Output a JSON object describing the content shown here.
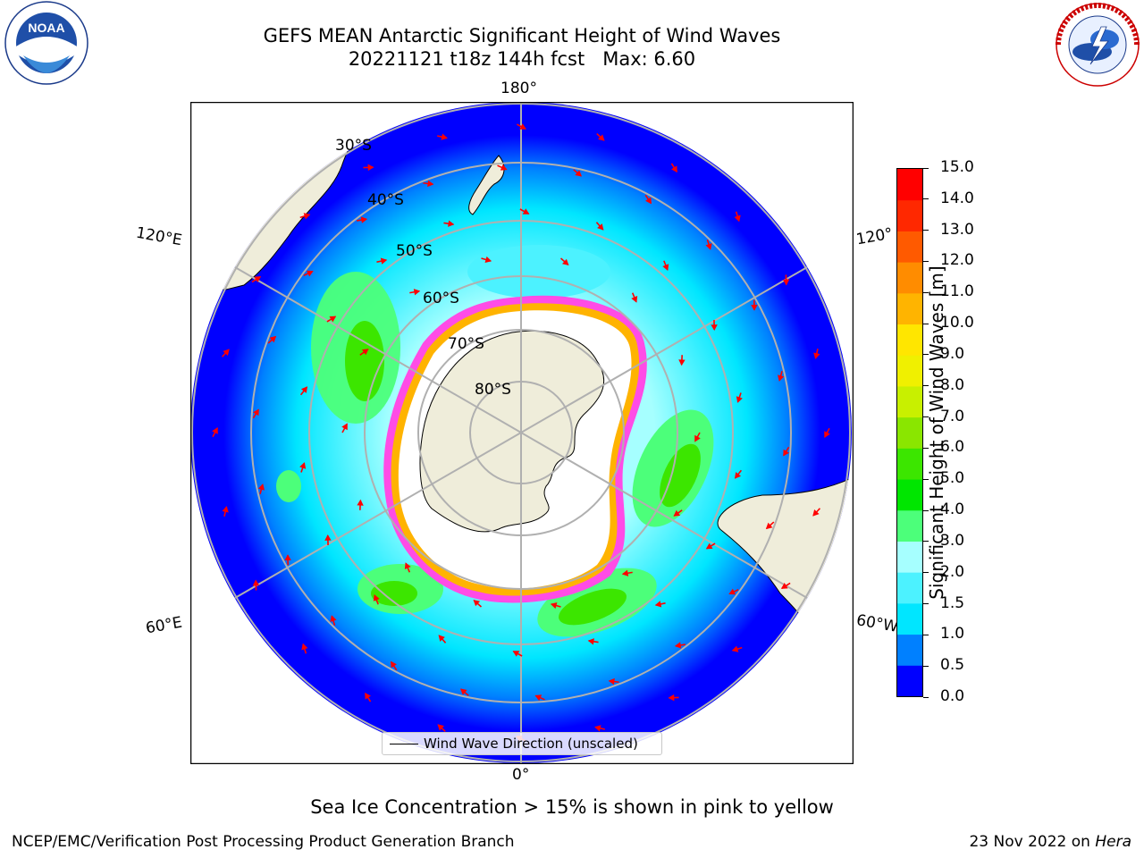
{
  "header": {
    "title_line1": "GEFS MEAN Antarctic Significant Height of Wind Waves",
    "title_line2": "20221121 t18z 144h fcst   Max: 6.60"
  },
  "logos": {
    "left": {
      "text": "NOAA",
      "ring_text": "NATIONAL OCEANIC AND ATMOSPHERIC ADMINISTRATION",
      "bottom_text": "U.S. DEPARTMENT OF COMMERCE"
    },
    "right": {
      "ring_text": "NATIONAL WEATHER SERVICE"
    }
  },
  "map": {
    "lon_labels": {
      "top": "180°",
      "bottom": "0°",
      "left_upper": "120°E",
      "left_lower": "60°E",
      "right_upper": "120°",
      "right_lower": "60°W"
    },
    "lat_labels": [
      "30°S",
      "40°S",
      "50°S",
      "60°S",
      "70°S",
      "80°S"
    ],
    "legend_label": "Wind Wave Direction (unscaled)",
    "colors": {
      "land": "#efedda",
      "sea_ice": "#ffffff",
      "arrow": "#ff0000",
      "grid": "#b0b0b0"
    }
  },
  "colorbar": {
    "title": "Significant Height of Wind Waves [m]",
    "ticks": [
      "0.0",
      "0.5",
      "1.0",
      "1.5",
      "2.0",
      "3.0",
      "4.0",
      "5.0",
      "6.0",
      "7.0",
      "8.0",
      "9.0",
      "10.0",
      "11.0",
      "12.0",
      "13.0",
      "14.0",
      "15.0"
    ],
    "colors": [
      "#0000ff",
      "#0080ff",
      "#00e6ff",
      "#4cf2ff",
      "#a6ffff",
      "#4cff7a",
      "#00e600",
      "#3ce600",
      "#8ae600",
      "#c8f000",
      "#f0f000",
      "#ffe600",
      "#ffb400",
      "#ff8c00",
      "#ff5a00",
      "#ff2800",
      "#ff0000"
    ]
  },
  "footer": {
    "note": "Sea Ice Concentration > 15% is shown in pink to yellow",
    "credit": "NCEP/EMC/Verification Post Processing Product Generation Branch",
    "date": "23 Nov 2022 on",
    "machine": "Hera"
  }
}
